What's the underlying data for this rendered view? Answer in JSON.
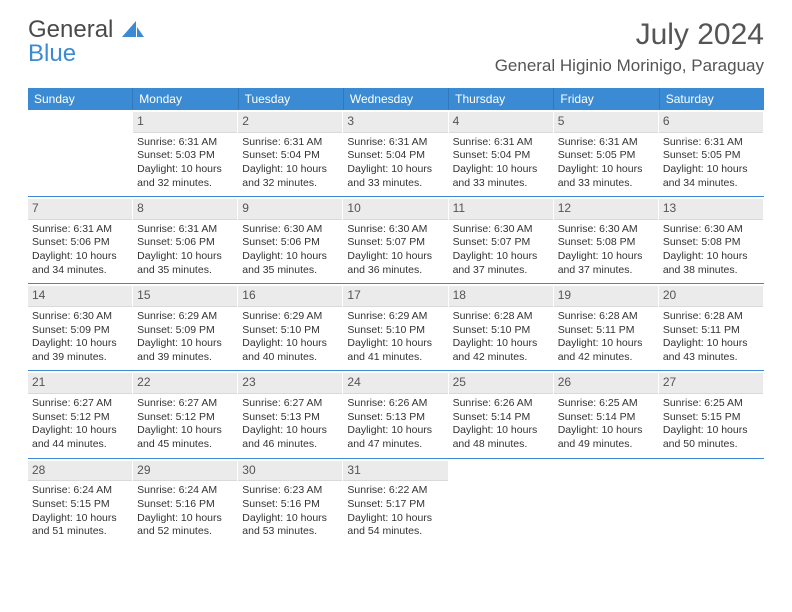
{
  "brand": {
    "part1": "General",
    "part2": "Blue"
  },
  "title": "July 2024",
  "location": "General Higinio Morinigo, Paraguay",
  "colors": {
    "header_bg": "#3b8bd4",
    "daynum_bg": "#ebebeb",
    "divider": "#3b8bd4",
    "text": "#333333"
  },
  "weekdays": [
    "Sunday",
    "Monday",
    "Tuesday",
    "Wednesday",
    "Thursday",
    "Friday",
    "Saturday"
  ],
  "weeks": [
    [
      null,
      {
        "n": "1",
        "sr": "Sunrise: 6:31 AM",
        "ss": "Sunset: 5:03 PM",
        "dl": "Daylight: 10 hours and 32 minutes."
      },
      {
        "n": "2",
        "sr": "Sunrise: 6:31 AM",
        "ss": "Sunset: 5:04 PM",
        "dl": "Daylight: 10 hours and 32 minutes."
      },
      {
        "n": "3",
        "sr": "Sunrise: 6:31 AM",
        "ss": "Sunset: 5:04 PM",
        "dl": "Daylight: 10 hours and 33 minutes."
      },
      {
        "n": "4",
        "sr": "Sunrise: 6:31 AM",
        "ss": "Sunset: 5:04 PM",
        "dl": "Daylight: 10 hours and 33 minutes."
      },
      {
        "n": "5",
        "sr": "Sunrise: 6:31 AM",
        "ss": "Sunset: 5:05 PM",
        "dl": "Daylight: 10 hours and 33 minutes."
      },
      {
        "n": "6",
        "sr": "Sunrise: 6:31 AM",
        "ss": "Sunset: 5:05 PM",
        "dl": "Daylight: 10 hours and 34 minutes."
      }
    ],
    [
      {
        "n": "7",
        "sr": "Sunrise: 6:31 AM",
        "ss": "Sunset: 5:06 PM",
        "dl": "Daylight: 10 hours and 34 minutes."
      },
      {
        "n": "8",
        "sr": "Sunrise: 6:31 AM",
        "ss": "Sunset: 5:06 PM",
        "dl": "Daylight: 10 hours and 35 minutes."
      },
      {
        "n": "9",
        "sr": "Sunrise: 6:30 AM",
        "ss": "Sunset: 5:06 PM",
        "dl": "Daylight: 10 hours and 35 minutes."
      },
      {
        "n": "10",
        "sr": "Sunrise: 6:30 AM",
        "ss": "Sunset: 5:07 PM",
        "dl": "Daylight: 10 hours and 36 minutes."
      },
      {
        "n": "11",
        "sr": "Sunrise: 6:30 AM",
        "ss": "Sunset: 5:07 PM",
        "dl": "Daylight: 10 hours and 37 minutes."
      },
      {
        "n": "12",
        "sr": "Sunrise: 6:30 AM",
        "ss": "Sunset: 5:08 PM",
        "dl": "Daylight: 10 hours and 37 minutes."
      },
      {
        "n": "13",
        "sr": "Sunrise: 6:30 AM",
        "ss": "Sunset: 5:08 PM",
        "dl": "Daylight: 10 hours and 38 minutes."
      }
    ],
    [
      {
        "n": "14",
        "sr": "Sunrise: 6:30 AM",
        "ss": "Sunset: 5:09 PM",
        "dl": "Daylight: 10 hours and 39 minutes."
      },
      {
        "n": "15",
        "sr": "Sunrise: 6:29 AM",
        "ss": "Sunset: 5:09 PM",
        "dl": "Daylight: 10 hours and 39 minutes."
      },
      {
        "n": "16",
        "sr": "Sunrise: 6:29 AM",
        "ss": "Sunset: 5:10 PM",
        "dl": "Daylight: 10 hours and 40 minutes."
      },
      {
        "n": "17",
        "sr": "Sunrise: 6:29 AM",
        "ss": "Sunset: 5:10 PM",
        "dl": "Daylight: 10 hours and 41 minutes."
      },
      {
        "n": "18",
        "sr": "Sunrise: 6:28 AM",
        "ss": "Sunset: 5:10 PM",
        "dl": "Daylight: 10 hours and 42 minutes."
      },
      {
        "n": "19",
        "sr": "Sunrise: 6:28 AM",
        "ss": "Sunset: 5:11 PM",
        "dl": "Daylight: 10 hours and 42 minutes."
      },
      {
        "n": "20",
        "sr": "Sunrise: 6:28 AM",
        "ss": "Sunset: 5:11 PM",
        "dl": "Daylight: 10 hours and 43 minutes."
      }
    ],
    [
      {
        "n": "21",
        "sr": "Sunrise: 6:27 AM",
        "ss": "Sunset: 5:12 PM",
        "dl": "Daylight: 10 hours and 44 minutes."
      },
      {
        "n": "22",
        "sr": "Sunrise: 6:27 AM",
        "ss": "Sunset: 5:12 PM",
        "dl": "Daylight: 10 hours and 45 minutes."
      },
      {
        "n": "23",
        "sr": "Sunrise: 6:27 AM",
        "ss": "Sunset: 5:13 PM",
        "dl": "Daylight: 10 hours and 46 minutes."
      },
      {
        "n": "24",
        "sr": "Sunrise: 6:26 AM",
        "ss": "Sunset: 5:13 PM",
        "dl": "Daylight: 10 hours and 47 minutes."
      },
      {
        "n": "25",
        "sr": "Sunrise: 6:26 AM",
        "ss": "Sunset: 5:14 PM",
        "dl": "Daylight: 10 hours and 48 minutes."
      },
      {
        "n": "26",
        "sr": "Sunrise: 6:25 AM",
        "ss": "Sunset: 5:14 PM",
        "dl": "Daylight: 10 hours and 49 minutes."
      },
      {
        "n": "27",
        "sr": "Sunrise: 6:25 AM",
        "ss": "Sunset: 5:15 PM",
        "dl": "Daylight: 10 hours and 50 minutes."
      }
    ],
    [
      {
        "n": "28",
        "sr": "Sunrise: 6:24 AM",
        "ss": "Sunset: 5:15 PM",
        "dl": "Daylight: 10 hours and 51 minutes."
      },
      {
        "n": "29",
        "sr": "Sunrise: 6:24 AM",
        "ss": "Sunset: 5:16 PM",
        "dl": "Daylight: 10 hours and 52 minutes."
      },
      {
        "n": "30",
        "sr": "Sunrise: 6:23 AM",
        "ss": "Sunset: 5:16 PM",
        "dl": "Daylight: 10 hours and 53 minutes."
      },
      {
        "n": "31",
        "sr": "Sunrise: 6:22 AM",
        "ss": "Sunset: 5:17 PM",
        "dl": "Daylight: 10 hours and 54 minutes."
      },
      null,
      null,
      null
    ]
  ]
}
